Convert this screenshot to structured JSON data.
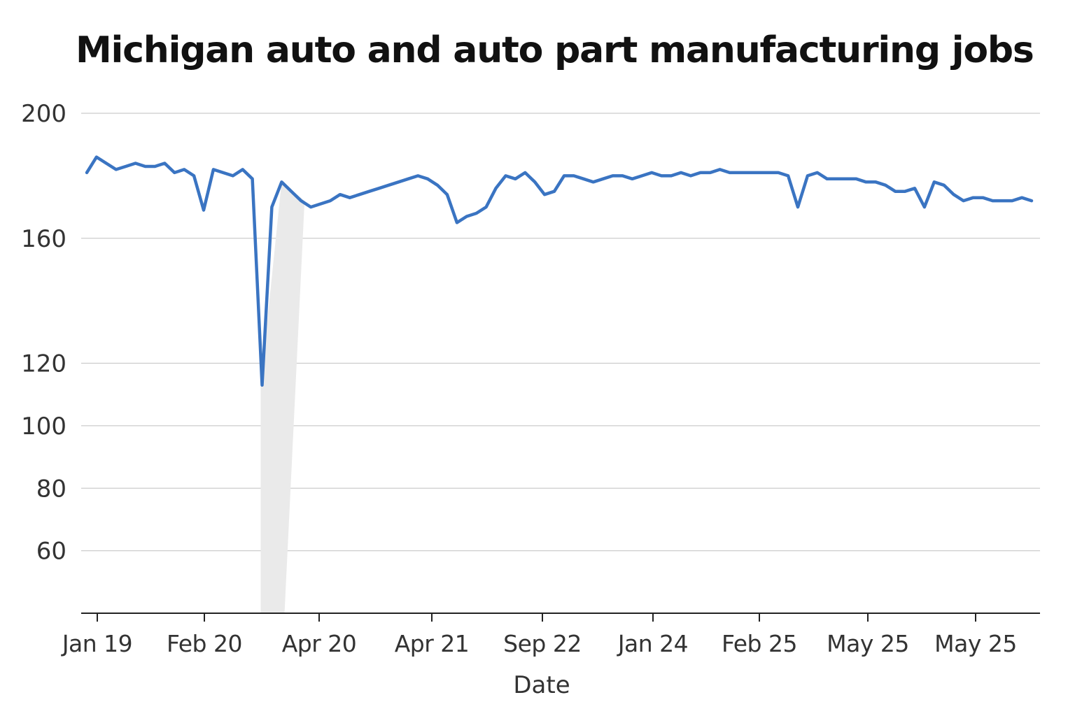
{
  "chart_data": {
    "type": "line",
    "title": "Michigan auto and auto part manufacturing jobs",
    "xlabel": "Date",
    "ylabel": "",
    "ylim": [
      40,
      200
    ],
    "yticks": [
      200,
      160,
      120,
      100,
      80,
      60
    ],
    "xticks": [
      "Jan 19",
      "Feb 20",
      "Apr 20",
      "Apr 21",
      "Sep 22",
      "Jan 24",
      "Feb 25",
      "May 25",
      "May 25"
    ],
    "grid": "horizontal",
    "colors": {
      "line": "#3a74c2",
      "shade": "#eaeaea",
      "grid": "#cccccc",
      "axis": "#222222"
    },
    "series": [
      {
        "values": [
          181,
          186,
          184,
          182,
          183,
          184,
          183,
          183,
          184,
          181,
          182,
          180,
          169,
          182,
          181,
          180,
          182,
          179,
          113,
          170,
          178,
          175,
          172,
          170,
          171,
          172,
          174,
          173,
          174,
          175,
          176,
          177,
          178,
          179,
          180,
          179,
          177,
          174,
          165,
          167,
          168,
          170,
          176,
          180,
          179,
          181,
          178,
          174,
          175,
          180,
          180,
          179,
          178,
          179,
          180,
          180,
          179,
          180,
          181,
          180,
          180,
          181,
          180,
          181,
          181,
          182,
          181,
          181,
          181,
          181,
          181,
          181,
          180,
          170,
          180,
          181,
          179,
          179,
          179,
          179,
          178,
          178,
          177,
          175,
          175,
          176,
          170,
          178,
          177,
          174,
          172,
          173,
          173,
          172,
          172,
          172,
          173,
          172
        ]
      }
    ]
  }
}
